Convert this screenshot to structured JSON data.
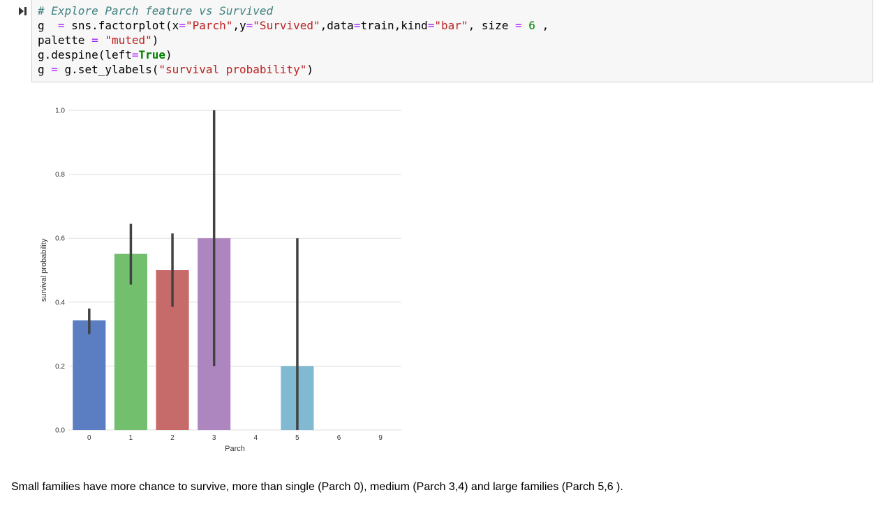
{
  "code_cell": {
    "comment": "# Explore Parch feature vs Survived",
    "line2": {
      "p1": "g  ",
      "eq": "=",
      "p2": " sns.factorplot(x",
      "eq2": "=",
      "s1": "\"Parch\"",
      "p3": ",y",
      "eq3": "=",
      "s2": "\"Survived\"",
      "p4": ",data",
      "eq4": "=",
      "p5": "train,kind",
      "eq5": "=",
      "s3": "\"bar\"",
      "p6": ", size ",
      "eq6": "=",
      "sp": " ",
      "n1": "6",
      "p7": " ,"
    },
    "line3": {
      "p1": "palette ",
      "eq": "=",
      "sp": " ",
      "s1": "\"muted\"",
      "p2": ")"
    },
    "line4": {
      "p1": "g.despine(left",
      "eq": "=",
      "kw": "True",
      "p2": ")"
    },
    "line5": {
      "p1": "g ",
      "eq": "=",
      "p2": " g.set_ylabels(",
      "s1": "\"survival probability\"",
      "p3": ")"
    }
  },
  "chart_data": {
    "type": "bar",
    "categories": [
      "0",
      "1",
      "2",
      "3",
      "4",
      "5",
      "6",
      "9"
    ],
    "values": [
      0.343,
      0.551,
      0.5,
      0.6,
      null,
      0.2,
      null,
      null
    ],
    "error_low": [
      0.3,
      0.455,
      0.385,
      0.2,
      null,
      0.0,
      null,
      null
    ],
    "error_high": [
      0.38,
      0.645,
      0.615,
      1.0,
      null,
      0.6,
      null,
      null
    ],
    "colors": [
      "#5b7ec2",
      "#72bf6e",
      "#c76a6a",
      "#ae86bf",
      null,
      "#82b9d2",
      null,
      null
    ],
    "xlabel": "Parch",
    "ylabel": "survival probability",
    "ylim": [
      0,
      1.0
    ],
    "yticks": [
      "0.0",
      "0.2",
      "0.4",
      "0.6",
      "0.8",
      "1.0"
    ],
    "grid": true
  },
  "markdown": {
    "text": "Small families have more chance to survive, more than single (Parch 0), medium (Parch 3,4) and large families (Parch 5,6 )."
  }
}
